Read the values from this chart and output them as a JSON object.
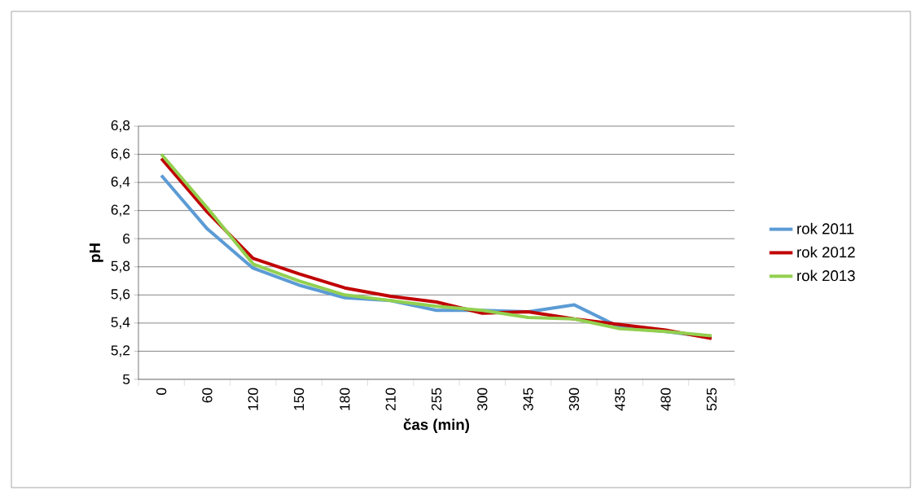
{
  "chart_data": {
    "type": "line",
    "xlabel": "čas (min)",
    "ylabel": "pH",
    "categories": [
      "0",
      "60",
      "120",
      "150",
      "180",
      "210",
      "255",
      "300",
      "345",
      "390",
      "435",
      "480",
      "525"
    ],
    "ylim": [
      5,
      6.8
    ],
    "yticks": [
      {
        "value": 5,
        "label": "5"
      },
      {
        "value": 5.2,
        "label": "5,2"
      },
      {
        "value": 5.4,
        "label": "5,4"
      },
      {
        "value": 5.6,
        "label": "5,6"
      },
      {
        "value": 5.8,
        "label": "5,8"
      },
      {
        "value": 6,
        "label": "6"
      },
      {
        "value": 6.2,
        "label": "6,2"
      },
      {
        "value": 6.4,
        "label": "6,4"
      },
      {
        "value": 6.6,
        "label": "6,6"
      },
      {
        "value": 6.8,
        "label": "6,8"
      }
    ],
    "grid": "y",
    "legend": "right",
    "marker": "none",
    "line_style": "solid",
    "series": [
      {
        "name": "rok 2011",
        "color": "#5b9bd5",
        "values": [
          6.45,
          6.07,
          5.79,
          5.67,
          5.58,
          5.56,
          5.49,
          5.49,
          5.48,
          5.53,
          5.37,
          5.34,
          5.3
        ]
      },
      {
        "name": "rok 2012",
        "color": "#c00000",
        "values": [
          6.57,
          6.19,
          5.86,
          5.75,
          5.65,
          5.59,
          5.55,
          5.47,
          5.48,
          5.43,
          5.39,
          5.35,
          5.29
        ]
      },
      {
        "name": "rok 2013",
        "color": "#92d050",
        "values": [
          6.6,
          6.22,
          5.82,
          5.7,
          5.6,
          5.56,
          5.52,
          5.49,
          5.44,
          5.43,
          5.36,
          5.34,
          5.31
        ]
      }
    ]
  }
}
